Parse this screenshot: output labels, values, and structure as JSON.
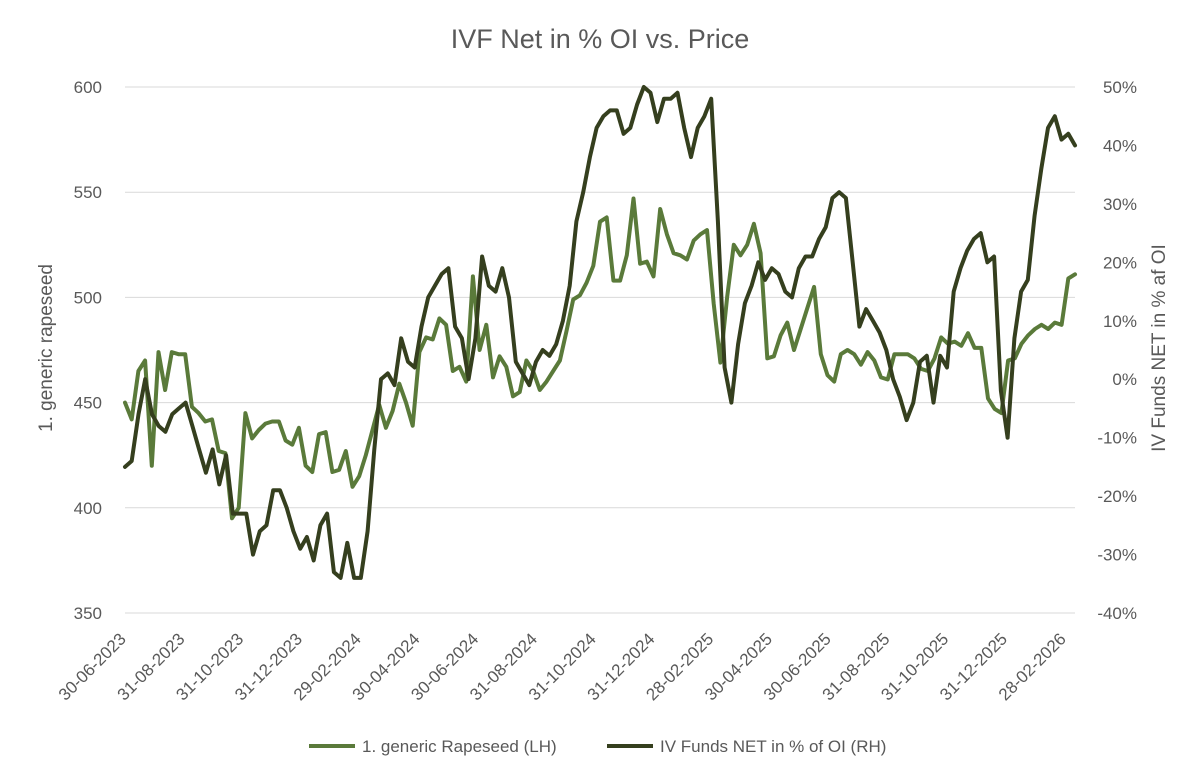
{
  "chart_data": {
    "type": "line",
    "title": "IVF Net in % OI vs. Price",
    "ylabel_left": "1. generic rapeseed",
    "ylabel_right": "IV Funds NET in % af OI",
    "ylim_left": [
      350,
      600
    ],
    "ylim_right": [
      -40,
      50
    ],
    "yticks_left": [
      "600",
      "550",
      "500",
      "450",
      "400",
      "350"
    ],
    "yticks_right": [
      "50%",
      "40%",
      "30%",
      "20%",
      "10%",
      "0%",
      "-10%",
      "-20%",
      "-30%",
      "-40%"
    ],
    "xticks": [
      "30-06-2023",
      "31-08-2023",
      "31-10-2023",
      "31-12-2023",
      "29-02-2024",
      "30-04-2024",
      "30-06-2024",
      "31-08-2024",
      "31-10-2024",
      "31-12-2024",
      "28-02-2025",
      "30-04-2025",
      "30-06-2025",
      "31-08-2025",
      "31-10-2025",
      "31-12-2025",
      "28-02-2026"
    ],
    "grid": true,
    "legend_position": "bottom",
    "series": [
      {
        "name": "1. generic Rapeseed (LH)",
        "axis": "left",
        "color": "#5a7a3a",
        "values": [
          450,
          442,
          465,
          470,
          420,
          474,
          456,
          474,
          473,
          473,
          448,
          445,
          441,
          442,
          427,
          426,
          395,
          400,
          445,
          433,
          437,
          440,
          441,
          441,
          432,
          430,
          438,
          420,
          417,
          435,
          436,
          417,
          418,
          427,
          410,
          415,
          425,
          437,
          449,
          438,
          446,
          459,
          450,
          439,
          474,
          481,
          480,
          490,
          487,
          465,
          467,
          460,
          510,
          475,
          487,
          462,
          472,
          467,
          453,
          455,
          470,
          465,
          456,
          460,
          465,
          470,
          484,
          499,
          501,
          507,
          515,
          536,
          538,
          508,
          508,
          520,
          547,
          516,
          517,
          510,
          542,
          530,
          521,
          520,
          518,
          527,
          530,
          532,
          497,
          469,
          500,
          525,
          520,
          525,
          535,
          521,
          471,
          472,
          482,
          488,
          475,
          485,
          495,
          505,
          473,
          463,
          460,
          473,
          475,
          473,
          468,
          474,
          470,
          462,
          461,
          473,
          473,
          473,
          471,
          466,
          465,
          471,
          481,
          478,
          479,
          477,
          483,
          476,
          476,
          452,
          447,
          445,
          470,
          471,
          478,
          482,
          485,
          487,
          485,
          488,
          487,
          509,
          511
        ]
      },
      {
        "name": "IV Funds NET in % of OI (RH)",
        "axis": "right",
        "color": "#353f1e",
        "values": [
          -15,
          -14,
          -6,
          0,
          -6,
          -8,
          -9,
          -6,
          -5,
          -4,
          -8,
          -12,
          -16,
          -12,
          -18,
          -13,
          -23,
          -23,
          -23,
          -30,
          -26,
          -25,
          -19,
          -19,
          -22,
          -26,
          -29,
          -27,
          -31,
          -25,
          -23,
          -33,
          -34,
          -28,
          -34,
          -34,
          -26,
          -12,
          0,
          1,
          -1,
          7,
          3,
          2,
          9,
          14,
          16,
          18,
          19,
          9,
          7,
          0,
          7,
          21,
          16,
          15,
          19,
          14,
          3,
          1,
          -1,
          3,
          5,
          4,
          6,
          10,
          16,
          27,
          32,
          38,
          43,
          45,
          46,
          46,
          42,
          43,
          47,
          50,
          49,
          44,
          48,
          48,
          49,
          43,
          38,
          43,
          45,
          48,
          27,
          2,
          -4,
          6,
          13,
          16,
          20,
          17,
          19,
          18,
          15,
          14,
          19,
          21,
          21,
          24,
          26,
          31,
          32,
          31,
          20,
          9,
          12,
          10,
          8,
          5,
          0,
          -3,
          -7,
          -4,
          3,
          4,
          -4,
          4,
          2,
          15,
          19,
          22,
          24,
          25,
          20,
          21,
          -2,
          -10,
          7,
          15,
          17,
          28,
          36,
          43,
          45,
          41,
          42,
          40
        ]
      }
    ]
  }
}
